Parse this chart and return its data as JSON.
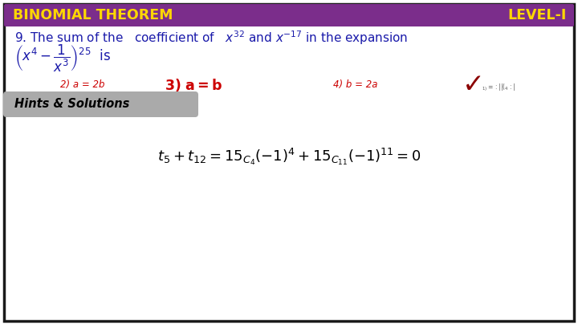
{
  "title_left": "BINOMIAL THEOREM",
  "title_right": "LEVEL-I",
  "title_bg": "#7B2D8B",
  "title_text_color": "#FFD700",
  "outer_bg": "#FFFFFF",
  "border_color": "#1a1a1a",
  "question_color": "#1a1aaa",
  "option_color_unselected": "#cc0000",
  "option_correct_color": "#cc0000",
  "hints_bg": "#AAAAAA",
  "hints_text": "Hints & Solutions",
  "hints_text_color": "#000000"
}
